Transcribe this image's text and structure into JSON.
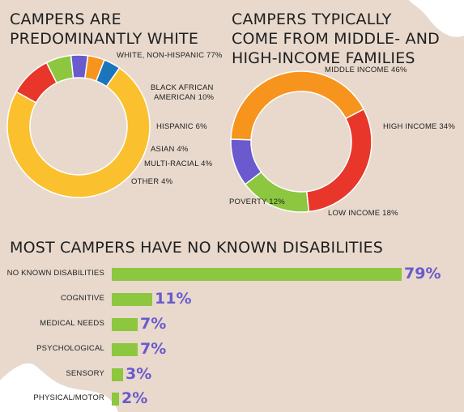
{
  "colors": {
    "background": "#e8d9cc",
    "shape": "#ffffff",
    "bar": "#8dc63f",
    "value_text": "#6a5acd"
  },
  "chart_data": [
    {
      "type": "pie",
      "variant": "donut",
      "title_lines": [
        "CAMPERS ARE",
        "PREDOMINANTLY WHITE"
      ],
      "slices": [
        {
          "label": "WHITE, NON-HISPANIC 77%",
          "value": 77,
          "color": "#fbc02d"
        },
        {
          "label": "BLACK AFRICAN AMERICAN 10%",
          "label_lines": [
            "BLACK AFRICAN",
            "AMERICAN 10%"
          ],
          "value": 10,
          "color": "#e8362a"
        },
        {
          "label": "HISPANIC 6%",
          "value": 6,
          "color": "#8dc63f"
        },
        {
          "label": "ASIAN 4%",
          "value": 4,
          "color": "#6a5acd"
        },
        {
          "label": "MULTI-RACIAL 4%",
          "value": 4,
          "color": "#f7941d"
        },
        {
          "label": "OTHER 4%",
          "value": 4,
          "color": "#1a75bb"
        }
      ]
    },
    {
      "type": "pie",
      "variant": "donut",
      "title_lines": [
        "CAMPERS TYPICALLY",
        "COME FROM MIDDLE- AND",
        "HIGH-INCOME FAMILIES"
      ],
      "slices": [
        {
          "label": "MIDDLE INCOME 46%",
          "value": 46,
          "color": "#f7941d"
        },
        {
          "label": "HIGH INCOME 34%",
          "value": 34,
          "color": "#e8362a"
        },
        {
          "label": "LOW INCOME 18%",
          "value": 18,
          "color": "#8dc63f"
        },
        {
          "label": "POVERTY 12%",
          "value": 12,
          "color": "#6a5acd"
        }
      ]
    },
    {
      "type": "bar",
      "orientation": "horizontal",
      "title": "MOST CAMPERS HAVE NO KNOWN DISABILITIES",
      "xlim": [
        0,
        79
      ],
      "categories": [
        "NO KNOWN DISABILITIES",
        "COGNITIVE",
        "MEDICAL NEEDS",
        "PSYCHOLOGICAL",
        "SENSORY",
        "PHYSICAL/MOTOR"
      ],
      "values": [
        79,
        11,
        7,
        7,
        3,
        2
      ],
      "value_labels": [
        "79%",
        "11%",
        "7%",
        "7%",
        "3%",
        "2%"
      ]
    }
  ]
}
